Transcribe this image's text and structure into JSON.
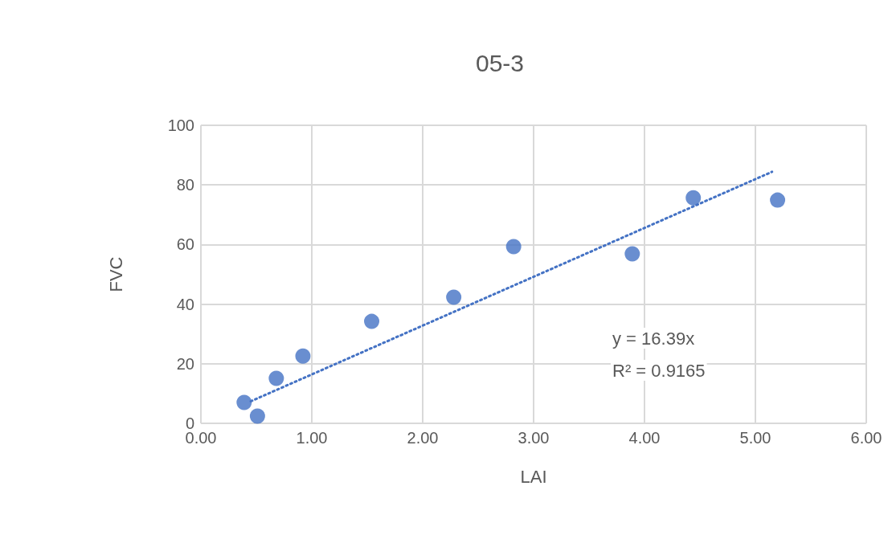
{
  "chart_data": {
    "type": "scatter",
    "title": "05-3",
    "xlabel": "LAI",
    "ylabel": "FVC",
    "xlim": [
      0,
      6
    ],
    "xticks": [
      {
        "value": 0,
        "label": "0.00"
      },
      {
        "value": 1,
        "label": "1.00"
      },
      {
        "value": 2,
        "label": "2.00"
      },
      {
        "value": 3,
        "label": "3.00"
      },
      {
        "value": 4,
        "label": "4.00"
      },
      {
        "value": 5,
        "label": "5.00"
      },
      {
        "value": 6,
        "label": "6.00"
      }
    ],
    "ylim": [
      0,
      100
    ],
    "yticks": [
      0,
      20,
      40,
      60,
      80,
      100
    ],
    "grid": true,
    "marker": "circle",
    "series": [
      {
        "type": "scatter",
        "color": "#4472c4",
        "x": [
          0.39,
          0.51,
          0.68,
          0.92,
          1.54,
          2.28,
          2.82,
          3.89,
          4.44,
          5.2
        ],
        "values": [
          7.0,
          2.4,
          15.1,
          22.6,
          34.2,
          42.3,
          59.3,
          56.9,
          75.7,
          74.9
        ]
      },
      {
        "type": "line",
        "color": "#4472c4",
        "line_style": "dotted",
        "marker": "none",
        "x": [
          0.45,
          5.15
        ],
        "values": [
          7.4,
          84.4
        ]
      }
    ],
    "annotations": [
      "y = 16.39x",
      "R² = 0.9165"
    ]
  }
}
